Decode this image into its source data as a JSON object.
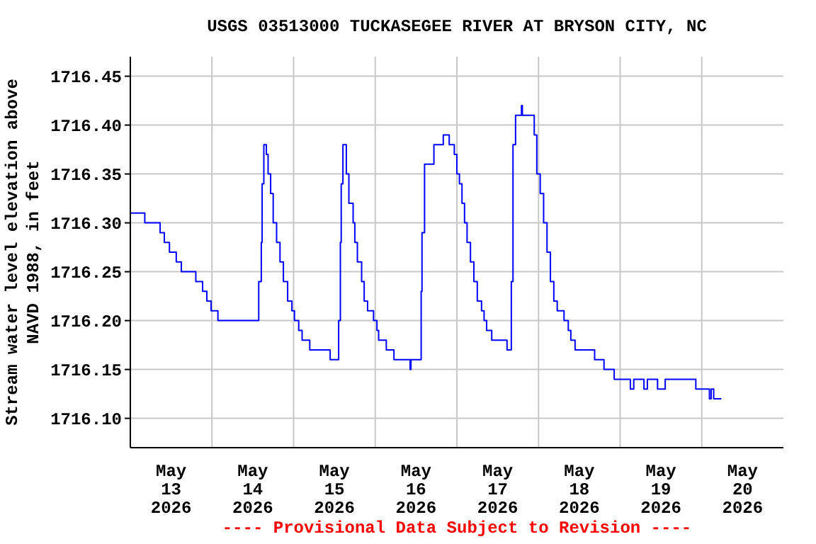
{
  "chart_data": {
    "type": "step",
    "title": "USGS 03513000 TUCKASEGEE RIVER AT BRYSON CITY, NC",
    "ylabel": "Stream water level elevation above NAVD 1988, in feet",
    "annotations": [
      "---- Provisional Data Subject to Revision ----"
    ],
    "x": [
      "2026-05-13T00:00",
      "2026-05-13T04:15",
      "2026-05-13T08:45",
      "2026-05-13T10:00",
      "2026-05-13T11:30",
      "2026-05-13T13:30",
      "2026-05-13T15:00",
      "2026-05-13T19:15",
      "2026-05-13T21:15",
      "2026-05-13T22:30",
      "2026-05-13T23:45",
      "2026-05-14T01:45",
      "2026-05-14T13:45",
      "2026-05-14T14:30",
      "2026-05-14T14:45",
      "2026-05-14T15:15",
      "2026-05-14T16:00",
      "2026-05-14T16:30",
      "2026-05-14T17:15",
      "2026-05-14T18:00",
      "2026-05-14T19:00",
      "2026-05-14T20:00",
      "2026-05-14T21:00",
      "2026-05-14T22:15",
      "2026-05-14T23:30",
      "2026-05-15T00:15",
      "2026-05-15T01:30",
      "2026-05-15T02:30",
      "2026-05-15T04:45",
      "2026-05-15T10:45",
      "2026-05-15T13:15",
      "2026-05-15T13:45",
      "2026-05-15T14:00",
      "2026-05-15T14:30",
      "2026-05-15T15:30",
      "2026-05-15T16:15",
      "2026-05-15T17:30",
      "2026-05-15T18:00",
      "2026-05-15T18:45",
      "2026-05-15T20:00",
      "2026-05-15T20:45",
      "2026-05-15T21:45",
      "2026-05-15T23:30",
      "2026-05-16T00:30",
      "2026-05-16T01:00",
      "2026-05-16T03:15",
      "2026-05-16T05:30",
      "2026-05-16T10:15",
      "2026-05-16T10:30",
      "2026-05-16T13:30",
      "2026-05-16T13:45",
      "2026-05-16T14:30",
      "2026-05-16T17:15",
      "2026-05-16T20:00",
      "2026-05-16T21:45",
      "2026-05-16T23:15",
      "2026-05-17T00:00",
      "2026-05-17T00:45",
      "2026-05-17T01:30",
      "2026-05-17T02:15",
      "2026-05-17T03:00",
      "2026-05-17T04:00",
      "2026-05-17T05:00",
      "2026-05-17T06:00",
      "2026-05-17T07:15",
      "2026-05-17T08:00",
      "2026-05-17T08:45",
      "2026-05-17T10:15",
      "2026-05-17T14:45",
      "2026-05-17T16:00",
      "2026-05-17T16:30",
      "2026-05-17T17:15",
      "2026-05-17T19:00",
      "2026-05-17T19:15",
      "2026-05-17T22:45",
      "2026-05-17T23:30",
      "2026-05-18T00:30",
      "2026-05-18T01:30",
      "2026-05-18T02:30",
      "2026-05-18T03:30",
      "2026-05-18T04:30",
      "2026-05-18T05:30",
      "2026-05-18T07:30",
      "2026-05-18T08:45",
      "2026-05-18T09:30",
      "2026-05-18T10:45",
      "2026-05-18T16:30",
      "2026-05-18T19:15",
      "2026-05-18T22:15",
      "2026-05-19T03:00",
      "2026-05-19T04:00",
      "2026-05-19T07:00",
      "2026-05-19T08:00",
      "2026-05-19T11:00",
      "2026-05-19T13:15",
      "2026-05-19T22:15",
      "2026-05-20T02:15",
      "2026-05-20T02:45",
      "2026-05-20T03:30",
      "2026-05-20T05:45"
    ],
    "series": [
      {
        "color": "#0000ff",
        "values": [
          1716.31,
          1716.3,
          1716.29,
          1716.28,
          1716.27,
          1716.26,
          1716.25,
          1716.24,
          1716.23,
          1716.22,
          1716.21,
          1716.2,
          1716.24,
          1716.28,
          1716.34,
          1716.38,
          1716.37,
          1716.35,
          1716.33,
          1716.3,
          1716.28,
          1716.26,
          1716.24,
          1716.22,
          1716.21,
          1716.2,
          1716.19,
          1716.18,
          1716.17,
          1716.16,
          1716.2,
          1716.28,
          1716.34,
          1716.38,
          1716.35,
          1716.32,
          1716.3,
          1716.28,
          1716.26,
          1716.24,
          1716.22,
          1716.21,
          1716.2,
          1716.19,
          1716.18,
          1716.17,
          1716.16,
          1716.15,
          1716.16,
          1716.23,
          1716.29,
          1716.36,
          1716.38,
          1716.39,
          1716.38,
          1716.37,
          1716.35,
          1716.34,
          1716.32,
          1716.3,
          1716.28,
          1716.26,
          1716.24,
          1716.22,
          1716.21,
          1716.2,
          1716.19,
          1716.18,
          1716.17,
          1716.24,
          1716.38,
          1716.41,
          1716.42,
          1716.41,
          1716.39,
          1716.35,
          1716.33,
          1716.3,
          1716.27,
          1716.24,
          1716.22,
          1716.21,
          1716.2,
          1716.19,
          1716.18,
          1716.17,
          1716.16,
          1716.15,
          1716.14,
          1716.13,
          1716.14,
          1716.13,
          1716.14,
          1716.13,
          1716.14,
          1716.13,
          1716.12,
          1716.13,
          1716.12,
          1716.12
        ]
      }
    ],
    "xlim": [
      "2026-05-13",
      "2026-05-21"
    ],
    "xticks": [
      {
        "value": "2026-05-13T12:00",
        "label": "May\n13\n2026"
      },
      {
        "value": "2026-05-14",
        "label": null
      },
      {
        "value": "2026-05-14T12:00",
        "label": "May\n14\n2026"
      },
      {
        "value": "2026-05-15",
        "label": null
      },
      {
        "value": "2026-05-15T12:00",
        "label": "May\n15\n2026"
      },
      {
        "value": "2026-05-16",
        "label": null
      },
      {
        "value": "2026-05-16T12:00",
        "label": "May\n16\n2026"
      },
      {
        "value": "2026-05-17",
        "label": null
      },
      {
        "value": "2026-05-17T12:00",
        "label": "May\n17\n2026"
      },
      {
        "value": "2026-05-18",
        "label": null
      },
      {
        "value": "2026-05-18T12:00",
        "label": "May\n18\n2026"
      },
      {
        "value": "2026-05-19",
        "label": null
      },
      {
        "value": "2026-05-19T12:00",
        "label": "May\n19\n2026"
      },
      {
        "value": "2026-05-20",
        "label": null
      },
      {
        "value": "2026-05-20T12:00",
        "label": "May\n20\n2026"
      }
    ],
    "ylim": [
      1716.07,
      1716.47
    ],
    "yticks": [
      {
        "value": 1716.1,
        "label": "1716.10"
      },
      {
        "value": 1716.15,
        "label": "1716.15"
      },
      {
        "value": 1716.2,
        "label": "1716.20"
      },
      {
        "value": 1716.25,
        "label": "1716.25"
      },
      {
        "value": 1716.3,
        "label": "1716.30"
      },
      {
        "value": 1716.35,
        "label": "1716.35"
      },
      {
        "value": 1716.4,
        "label": "1716.40"
      },
      {
        "value": 1716.45,
        "label": "1716.45"
      }
    ],
    "grid": true,
    "line_style": "solid"
  }
}
